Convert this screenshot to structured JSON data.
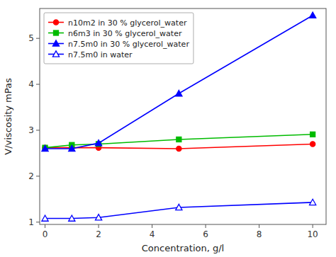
{
  "chart_data": {
    "type": "line",
    "xlabel": "Concentration, g/l",
    "ylabel": "V/viscosity mPas",
    "xlim": [
      -0.2,
      10.5
    ],
    "ylim": [
      0.95,
      5.65
    ],
    "xticks": [
      0,
      2,
      4,
      6,
      8,
      10
    ],
    "yticks": [
      1,
      2,
      3,
      4,
      5
    ],
    "grid": false,
    "legend": "upper left",
    "x": [
      0,
      1,
      2,
      5,
      10
    ],
    "series": [
      {
        "name": "n10m2 in 30 % glycerol_water",
        "color": "#ff0000",
        "marker": "circle",
        "line_style": "solid",
        "values": [
          2.62,
          2.62,
          2.62,
          2.6,
          2.7
        ]
      },
      {
        "name": "n6m3 in 30 % glycerol_water",
        "color": "#00bb00",
        "marker": "square",
        "line_style": "solid",
        "values": [
          2.62,
          2.68,
          2.7,
          2.8,
          2.91
        ]
      },
      {
        "name": "n7.5m0 in 30 % glycerol_water",
        "color": "#0000ff",
        "marker": "triangle",
        "line_style": "solid",
        "values": [
          2.6,
          2.6,
          2.72,
          3.8,
          5.5
        ]
      },
      {
        "name": "n7.5m0 in water",
        "color": "#0000ff",
        "marker": "triangle-open",
        "line_style": "solid",
        "values": [
          1.08,
          1.08,
          1.1,
          1.32,
          1.43
        ]
      }
    ]
  }
}
